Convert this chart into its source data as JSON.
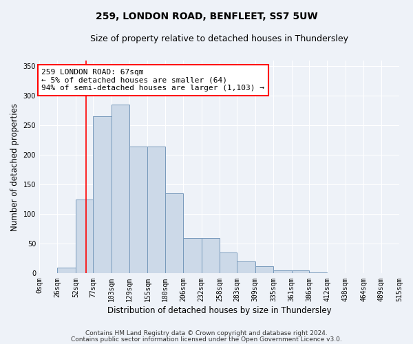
{
  "title": "259, LONDON ROAD, BENFLEET, SS7 5UW",
  "subtitle": "Size of property relative to detached houses in Thundersley",
  "xlabel": "Distribution of detached houses by size in Thundersley",
  "ylabel": "Number of detached properties",
  "bin_edges": [
    0,
    26,
    52,
    77,
    103,
    129,
    155,
    180,
    206,
    232,
    258,
    283,
    309,
    335,
    361,
    386,
    412,
    438,
    464,
    489,
    515
  ],
  "bar_heights": [
    0,
    10,
    125,
    265,
    285,
    215,
    215,
    135,
    60,
    60,
    35,
    20,
    12,
    5,
    5,
    2,
    0,
    0,
    0,
    0
  ],
  "bar_color": "#ccd9e8",
  "bar_edge_color": "#7799bb",
  "vline_x": 67,
  "vline_color": "red",
  "annotation_line1": "259 LONDON ROAD: 67sqm",
  "annotation_line2": "← 5% of detached houses are smaller (64)",
  "annotation_line3": "94% of semi-detached houses are larger (1,103) →",
  "annotation_box_color": "white",
  "annotation_box_edge_color": "red",
  "ylim": [
    0,
    360
  ],
  "yticks": [
    0,
    50,
    100,
    150,
    200,
    250,
    300,
    350
  ],
  "tick_labels": [
    "0sqm",
    "26sqm",
    "52sqm",
    "77sqm",
    "103sqm",
    "129sqm",
    "155sqm",
    "180sqm",
    "206sqm",
    "232sqm",
    "258sqm",
    "283sqm",
    "309sqm",
    "335sqm",
    "361sqm",
    "386sqm",
    "412sqm",
    "438sqm",
    "464sqm",
    "489sqm",
    "515sqm"
  ],
  "footnote1": "Contains HM Land Registry data © Crown copyright and database right 2024.",
  "footnote2": "Contains public sector information licensed under the Open Government Licence v3.0.",
  "background_color": "#eef2f8",
  "grid_color": "#ffffff",
  "title_fontsize": 10,
  "subtitle_fontsize": 9,
  "axis_label_fontsize": 8.5,
  "tick_fontsize": 7,
  "footnote_fontsize": 6.5,
  "annotation_fontsize": 8
}
